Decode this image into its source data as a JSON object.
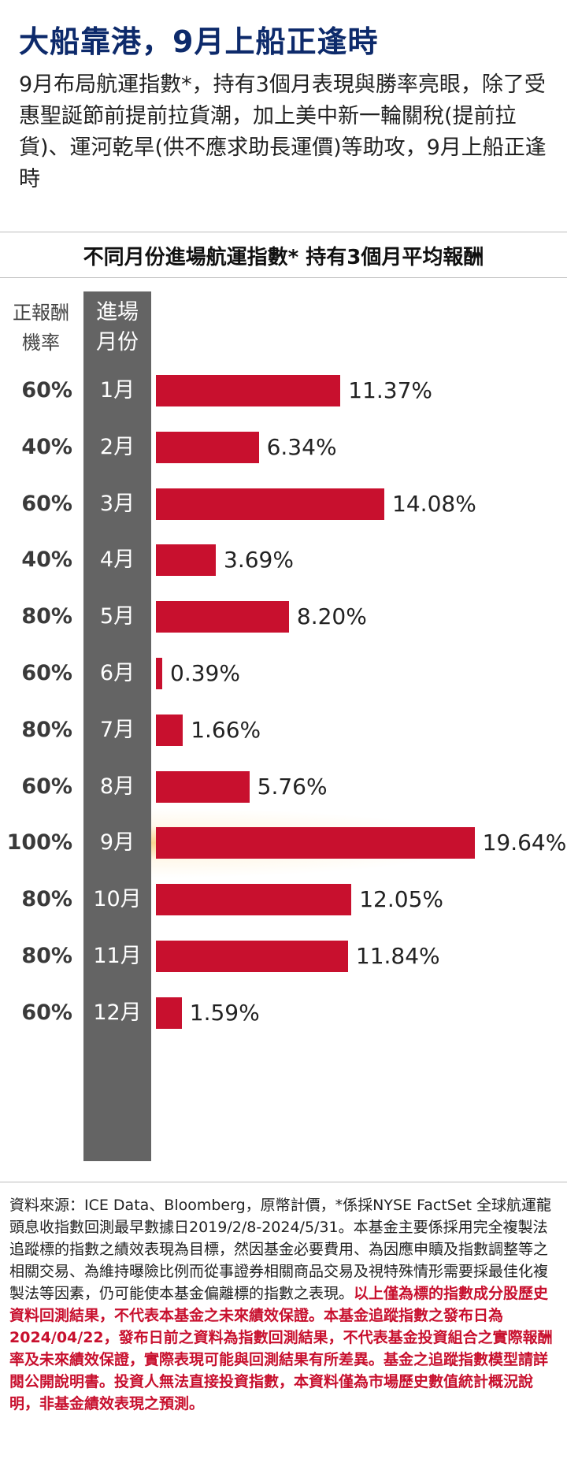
{
  "header": {
    "headline": "大船靠港，9月上船正逢時",
    "intro": "9月布局航運指數*，持有3個月表現與勝率亮眼，除了受惠聖誕節前提前拉貨潮，加上美中新一輪關稅(提前拉貨)、運河乾旱(供不應求助長運價)等助攻，9月上船正逢時"
  },
  "chart_data": {
    "type": "bar",
    "orientation": "horizontal",
    "title": "不同月份進場航運指數*  持有3個月平均報酬",
    "column_headers": {
      "win_rate": "正報酬機率",
      "entry_month": "進場月份"
    },
    "categories": [
      "1月",
      "2月",
      "3月",
      "4月",
      "5月",
      "6月",
      "7月",
      "8月",
      "9月",
      "10月",
      "11月",
      "12月"
    ],
    "values": [
      11.37,
      6.34,
      14.08,
      3.69,
      8.2,
      0.39,
      1.66,
      5.76,
      19.64,
      12.05,
      11.84,
      1.59
    ],
    "value_labels": [
      "11.37%",
      "6.34%",
      "14.08%",
      "3.69%",
      "8.20%",
      "0.39%",
      "1.66%",
      "5.76%",
      "19.64%",
      "12.05%",
      "11.84%",
      "1.59%"
    ],
    "win_rates": [
      "60%",
      "40%",
      "60%",
      "40%",
      "80%",
      "60%",
      "80%",
      "60%",
      "100%",
      "80%",
      "80%",
      "60%"
    ],
    "unit": "%",
    "highlight_category": "9月",
    "bar_color": "#c8102e",
    "highlight_glow_color": "#f6c86e",
    "month_column_color": "#646464",
    "grid": false
  },
  "footnote": {
    "normal": "資料來源：ICE Data、Bloomberg，原幣計價，*係採NYSE FactSet 全球航運龍頭息收指數回測最早數據日2019/2/8-2024/5/31。本基金主要係採用完全複製法追蹤標的指數之績效表現為目標，然因基金必要費用、為因應申贖及指數調整等之相關交易、為維持曝險比例而從事證券相關商品交易及視特殊情形需要採最佳化複製法等因素，仍可能使本基金偏離標的指數之表現。",
    "red": "以上僅為標的指數成分股歷史資料回測結果，不代表本基金之未來績效保證。本基金追蹤指數之發布日為2024/04/22，發布日前之資料為指數回測結果，不代表基金投資組合之實際報酬率及未來績效保證，實際表現可能與回測結果有所差異。基金之追蹤指數模型請詳閱公開說明書。投資人無法直接投資指數，本資料僅為市場歷史數值統計概況說明，非基金績效表現之預測。"
  }
}
